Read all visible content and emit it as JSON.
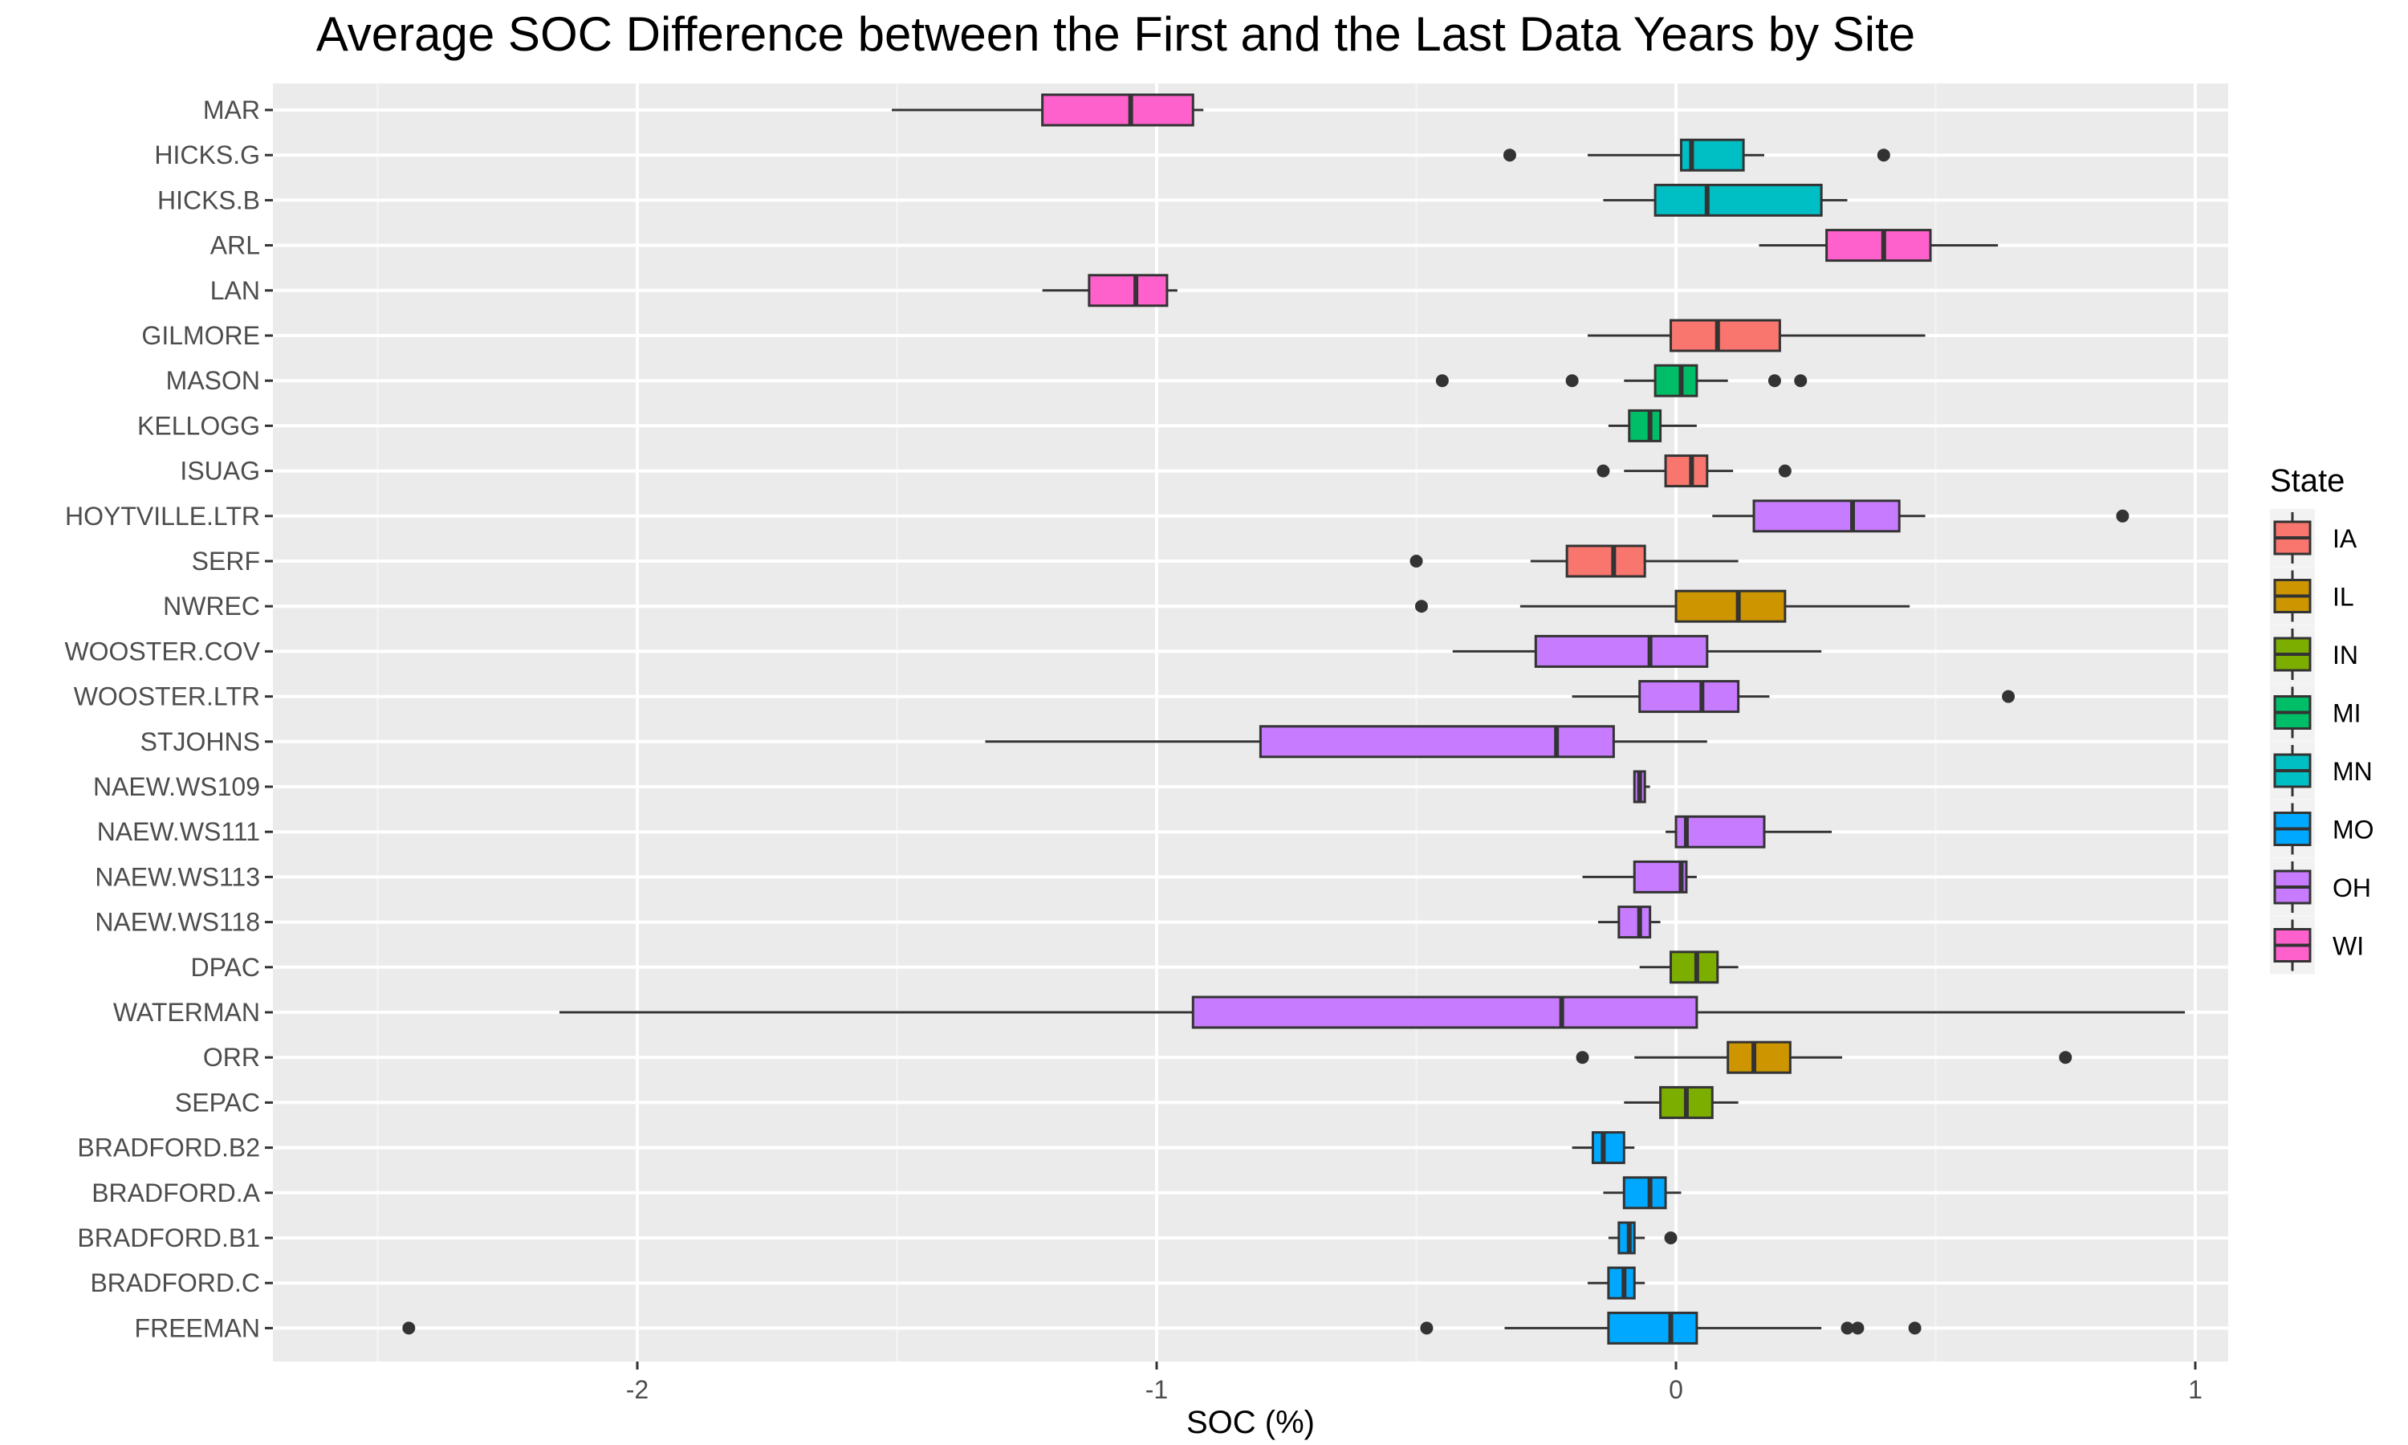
{
  "chart_data": {
    "type": "boxplot",
    "title": "Average SOC Difference between the First and the Last Data Years by Site",
    "xlabel": "SOC (%)",
    "ylabel": "",
    "xlim": [
      -2.5,
      1.15
    ],
    "x_ticks": [
      -2,
      -1,
      0,
      1
    ],
    "x_tick_labels": [
      "-2",
      "-1",
      "0",
      "1"
    ],
    "grid": true,
    "legend": {
      "title": "State",
      "position": "right",
      "entries": [
        {
          "label": "IA",
          "color": "#F8766D"
        },
        {
          "label": "IL",
          "color": "#CD9600"
        },
        {
          "label": "IN",
          "color": "#7CAE00"
        },
        {
          "label": "MI",
          "color": "#00BE67"
        },
        {
          "label": "MN",
          "color": "#00BFC4"
        },
        {
          "label": "MO",
          "color": "#00A9FF"
        },
        {
          "label": "OH",
          "color": "#C77CFF"
        },
        {
          "label": "WI",
          "color": "#FF61CC"
        }
      ]
    },
    "sites": [
      {
        "site": "MAR",
        "state": "WI",
        "wmin": -1.51,
        "q1": -1.22,
        "median": -1.05,
        "q3": -0.93,
        "wmax": -0.91,
        "outliers": []
      },
      {
        "site": "HICKS.G",
        "state": "MN",
        "wmin": -0.17,
        "q1": 0.01,
        "median": 0.03,
        "q3": 0.13,
        "wmax": 0.17,
        "outliers": [
          -0.32,
          0.4
        ]
      },
      {
        "site": "HICKS.B",
        "state": "MN",
        "wmin": -0.14,
        "q1": -0.04,
        "median": 0.06,
        "q3": 0.28,
        "wmax": 0.33,
        "outliers": []
      },
      {
        "site": "ARL",
        "state": "WI",
        "wmin": 0.16,
        "q1": 0.29,
        "median": 0.4,
        "q3": 0.49,
        "wmax": 0.62,
        "outliers": []
      },
      {
        "site": "LAN",
        "state": "WI",
        "wmin": -1.22,
        "q1": -1.13,
        "median": -1.04,
        "q3": -0.98,
        "wmax": -0.96,
        "outliers": []
      },
      {
        "site": "GILMORE",
        "state": "IA",
        "wmin": -0.17,
        "q1": -0.01,
        "median": 0.08,
        "q3": 0.2,
        "wmax": 0.48,
        "outliers": []
      },
      {
        "site": "MASON",
        "state": "MI",
        "wmin": -0.1,
        "q1": -0.04,
        "median": 0.01,
        "q3": 0.04,
        "wmax": 0.1,
        "outliers": [
          -0.45,
          -0.2,
          0.19,
          0.24
        ]
      },
      {
        "site": "KELLOGG",
        "state": "MI",
        "wmin": -0.13,
        "q1": -0.09,
        "median": -0.05,
        "q3": -0.03,
        "wmax": 0.04,
        "outliers": []
      },
      {
        "site": "ISUAG",
        "state": "IA",
        "wmin": -0.1,
        "q1": -0.02,
        "median": 0.03,
        "q3": 0.06,
        "wmax": 0.11,
        "outliers": [
          -0.14,
          0.21
        ]
      },
      {
        "site": "HOYTVILLE.LTR",
        "state": "OH",
        "wmin": 0.07,
        "q1": 0.15,
        "median": 0.34,
        "q3": 0.43,
        "wmax": 0.48,
        "outliers": [
          0.86
        ]
      },
      {
        "site": "SERF",
        "state": "IA",
        "wmin": -0.28,
        "q1": -0.21,
        "median": -0.12,
        "q3": -0.06,
        "wmax": 0.12,
        "outliers": [
          -0.5
        ]
      },
      {
        "site": "NWREC",
        "state": "IL",
        "wmin": -0.3,
        "q1": 0.0,
        "median": 0.12,
        "q3": 0.21,
        "wmax": 0.45,
        "outliers": [
          -0.49
        ]
      },
      {
        "site": "WOOSTER.COV",
        "state": "OH",
        "wmin": -0.43,
        "q1": -0.27,
        "median": -0.05,
        "q3": 0.06,
        "wmax": 0.28,
        "outliers": []
      },
      {
        "site": "WOOSTER.LTR",
        "state": "OH",
        "wmin": -0.2,
        "q1": -0.07,
        "median": 0.05,
        "q3": 0.12,
        "wmax": 0.18,
        "outliers": [
          0.64
        ]
      },
      {
        "site": "STJOHNS",
        "state": "OH",
        "wmin": -1.33,
        "q1": -0.8,
        "median": -0.23,
        "q3": -0.12,
        "wmax": 0.06,
        "outliers": []
      },
      {
        "site": "NAEW.WS109",
        "state": "OH",
        "wmin": -0.08,
        "q1": -0.08,
        "median": -0.07,
        "q3": -0.06,
        "wmax": -0.05,
        "outliers": []
      },
      {
        "site": "NAEW.WS111",
        "state": "OH",
        "wmin": -0.02,
        "q1": 0.0,
        "median": 0.02,
        "q3": 0.17,
        "wmax": 0.3,
        "outliers": []
      },
      {
        "site": "NAEW.WS113",
        "state": "OH",
        "wmin": -0.18,
        "q1": -0.08,
        "median": 0.01,
        "q3": 0.02,
        "wmax": 0.04,
        "outliers": []
      },
      {
        "site": "NAEW.WS118",
        "state": "OH",
        "wmin": -0.15,
        "q1": -0.11,
        "median": -0.07,
        "q3": -0.05,
        "wmax": -0.03,
        "outliers": []
      },
      {
        "site": "DPAC",
        "state": "IN",
        "wmin": -0.07,
        "q1": -0.01,
        "median": 0.04,
        "q3": 0.08,
        "wmax": 0.12,
        "outliers": []
      },
      {
        "site": "WATERMAN",
        "state": "OH",
        "wmin": -2.15,
        "q1": -0.93,
        "median": -0.22,
        "q3": 0.04,
        "wmax": 0.98,
        "outliers": []
      },
      {
        "site": "ORR",
        "state": "IL",
        "wmin": -0.08,
        "q1": 0.1,
        "median": 0.15,
        "q3": 0.22,
        "wmax": 0.32,
        "outliers": [
          -0.18,
          0.75
        ]
      },
      {
        "site": "SEPAC",
        "state": "IN",
        "wmin": -0.1,
        "q1": -0.03,
        "median": 0.02,
        "q3": 0.07,
        "wmax": 0.12,
        "outliers": []
      },
      {
        "site": "BRADFORD.B2",
        "state": "MO",
        "wmin": -0.2,
        "q1": -0.16,
        "median": -0.14,
        "q3": -0.1,
        "wmax": -0.08,
        "outliers": []
      },
      {
        "site": "BRADFORD.A",
        "state": "MO",
        "wmin": -0.14,
        "q1": -0.1,
        "median": -0.05,
        "q3": -0.02,
        "wmax": 0.01,
        "outliers": []
      },
      {
        "site": "BRADFORD.B1",
        "state": "MO",
        "wmin": -0.13,
        "q1": -0.11,
        "median": -0.09,
        "q3": -0.08,
        "wmax": -0.06,
        "outliers": [
          -0.01
        ]
      },
      {
        "site": "BRADFORD.C",
        "state": "MO",
        "wmin": -0.17,
        "q1": -0.13,
        "median": -0.1,
        "q3": -0.08,
        "wmax": -0.06,
        "outliers": []
      },
      {
        "site": "FREEMAN",
        "state": "MO",
        "wmin": -0.33,
        "q1": -0.13,
        "median": -0.01,
        "q3": 0.04,
        "wmax": 0.28,
        "outliers": [
          -2.44,
          -0.48,
          0.33,
          0.35,
          0.46
        ]
      }
    ]
  }
}
